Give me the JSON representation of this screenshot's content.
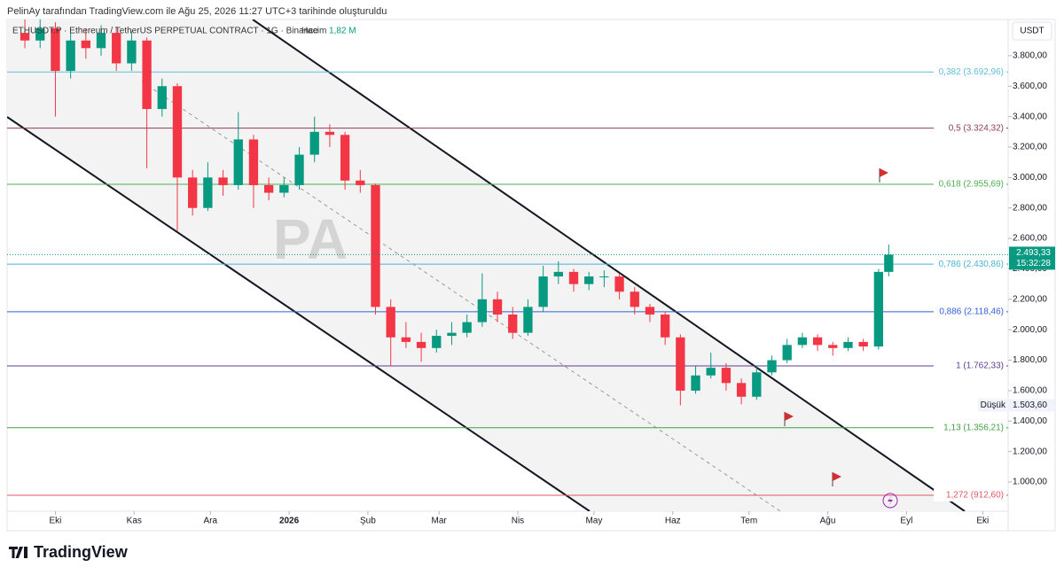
{
  "header": {
    "credit": "PelinAy tarafından TradingView.com ile Ağu 25, 2026 11:27 UTC+3 tarihinde oluşturuldu",
    "symbol": "ETHUSDT.P · Ethereum / TetherUS PERPETUAL CONTRACT · 1G · Binance",
    "volume_label": "Hacim",
    "volume": "1,82 M"
  },
  "currency": "USDT",
  "watermark": "PA",
  "footer": "TradingView",
  "chart_data": {
    "type": "candlestick",
    "xlim": [
      -19,
      375
    ],
    "ylim": [
      808,
      4038
    ],
    "xticks": [
      {
        "value": 0,
        "label": "Eki"
      },
      {
        "value": 31,
        "label": "Kas"
      },
      {
        "value": 61,
        "label": "Ara"
      },
      {
        "value": 92,
        "label": "2026"
      },
      {
        "value": 123,
        "label": "Şub"
      },
      {
        "value": 151,
        "label": "Mar"
      },
      {
        "value": 182,
        "label": "Nis"
      },
      {
        "value": 212,
        "label": "May"
      },
      {
        "value": 243,
        "label": "Haz"
      },
      {
        "value": 273,
        "label": "Tem"
      },
      {
        "value": 304,
        "label": "Ağu"
      },
      {
        "value": 335,
        "label": "Eyl"
      },
      {
        "value": 365,
        "label": "Eki"
      }
    ],
    "yticks": [
      {
        "value": 1000,
        "label": "1.000,00"
      },
      {
        "value": 1200,
        "label": "1.200,00"
      },
      {
        "value": 1400,
        "label": "1.400,00"
      },
      {
        "value": 1600,
        "label": "1.600,00"
      },
      {
        "value": 1800,
        "label": "1.800,00"
      },
      {
        "value": 2000,
        "label": "2.000,00"
      },
      {
        "value": 2200,
        "label": "2.200,00"
      },
      {
        "value": 2400,
        "label": "2.400,00"
      },
      {
        "value": 2600,
        "label": "2.600,00"
      },
      {
        "value": 2800,
        "label": "2.800,00"
      },
      {
        "value": 3000,
        "label": "3.000,00"
      },
      {
        "value": 3200,
        "label": "3.200,00"
      },
      {
        "value": 3400,
        "label": "3.400,00"
      },
      {
        "value": 3600,
        "label": "3.600,00"
      },
      {
        "value": 3800,
        "label": "3.800,00"
      }
    ],
    "up_color": "#089981",
    "down_color": "#f23645",
    "ohlc": [
      [
        -12,
        3950,
        4060,
        3850,
        3900
      ],
      [
        -6,
        3900,
        4050,
        3850,
        3980
      ],
      [
        0,
        3980,
        4020,
        3400,
        3700
      ],
      [
        6,
        3700,
        3950,
        3650,
        3900
      ],
      [
        12,
        3900,
        3980,
        3780,
        3850
      ],
      [
        18,
        3850,
        4000,
        3800,
        3950
      ],
      [
        24,
        3950,
        3990,
        3700,
        3750
      ],
      [
        30,
        3750,
        3960,
        3700,
        3900
      ],
      [
        36,
        3900,
        3920,
        3060,
        3450
      ],
      [
        42,
        3450,
        3650,
        3400,
        3600
      ],
      [
        48,
        3600,
        3620,
        2650,
        3000
      ],
      [
        54,
        3000,
        3050,
        2750,
        2800
      ],
      [
        60,
        2800,
        3100,
        2780,
        3000
      ],
      [
        66,
        3000,
        3050,
        2880,
        2950
      ],
      [
        72,
        2950,
        3430,
        2920,
        3250
      ],
      [
        78,
        3250,
        3280,
        2800,
        2950
      ],
      [
        84,
        2950,
        3000,
        2850,
        2900
      ],
      [
        90,
        2900,
        3000,
        2870,
        2950
      ],
      [
        96,
        2950,
        3200,
        2920,
        3150
      ],
      [
        102,
        3150,
        3400,
        3100,
        3300
      ],
      [
        108,
        3300,
        3350,
        3200,
        3280
      ],
      [
        114,
        3280,
        3300,
        2920,
        2980
      ],
      [
        120,
        2980,
        3050,
        2900,
        2950
      ],
      [
        126,
        2950,
        2960,
        2100,
        2150
      ],
      [
        132,
        2150,
        2200,
        1760,
        1950
      ],
      [
        138,
        1950,
        2050,
        1880,
        1920
      ],
      [
        144,
        1920,
        1980,
        1790,
        1880
      ],
      [
        150,
        1880,
        2000,
        1850,
        1960
      ],
      [
        156,
        1960,
        2050,
        1900,
        1980
      ],
      [
        162,
        1980,
        2100,
        1950,
        2050
      ],
      [
        168,
        2050,
        2370,
        2020,
        2200
      ],
      [
        174,
        2200,
        2250,
        2050,
        2100
      ],
      [
        180,
        2100,
        2150,
        1940,
        1980
      ],
      [
        186,
        1980,
        2200,
        1960,
        2150
      ],
      [
        192,
        2150,
        2420,
        2120,
        2350
      ],
      [
        198,
        2350,
        2450,
        2300,
        2380
      ],
      [
        204,
        2380,
        2400,
        2250,
        2300
      ],
      [
        210,
        2300,
        2380,
        2260,
        2350
      ],
      [
        216,
        2350,
        2390,
        2280,
        2350
      ],
      [
        222,
        2350,
        2370,
        2200,
        2250
      ],
      [
        228,
        2250,
        2280,
        2100,
        2150
      ],
      [
        234,
        2150,
        2170,
        2050,
        2100
      ],
      [
        240,
        2100,
        2120,
        1900,
        1950
      ],
      [
        246,
        1950,
        1970,
        1503.6,
        1600
      ],
      [
        252,
        1600,
        1760,
        1580,
        1700
      ],
      [
        258,
        1700,
        1850,
        1680,
        1750
      ],
      [
        264,
        1750,
        1780,
        1600,
        1650
      ],
      [
        270,
        1650,
        1680,
        1510,
        1560
      ],
      [
        276,
        1560,
        1760,
        1540,
        1720
      ],
      [
        282,
        1720,
        1830,
        1700,
        1800
      ],
      [
        288,
        1800,
        1940,
        1780,
        1900
      ],
      [
        294,
        1900,
        1980,
        1880,
        1950
      ],
      [
        300,
        1950,
        1970,
        1860,
        1900
      ],
      [
        306,
        1900,
        1920,
        1830,
        1880
      ],
      [
        312,
        1880,
        1950,
        1860,
        1920
      ],
      [
        318,
        1920,
        1940,
        1860,
        1890
      ],
      [
        324,
        1890,
        2400,
        1870,
        2380
      ],
      [
        328,
        2380,
        2560,
        2350,
        2493.33
      ]
    ],
    "levels": [
      {
        "label": "0,382 (3.692,96)",
        "value": 3692.96,
        "color": "#5fc0d8"
      },
      {
        "label": "0,5 (3.324,32)",
        "value": 3324.32,
        "color": "#8e3b55"
      },
      {
        "label": "0,618 (2.955,69)",
        "value": 2955.69,
        "color": "#4caf50"
      },
      {
        "label": "0,786 (2.430,86)",
        "value": 2430.86,
        "color": "#4cb3d4"
      },
      {
        "label": "0,886 (2.118,46)",
        "value": 2118.46,
        "color": "#2f5fdc"
      },
      {
        "label": "1 (1.762,33)",
        "value": 1762.33,
        "color": "#5b3f91"
      },
      {
        "label": "1,13 (1.356,21)",
        "value": 1356.21,
        "color": "#43a047"
      },
      {
        "label": "1,272 (912,60)",
        "value": 912.6,
        "color": "#e05763"
      }
    ],
    "last_price": {
      "value": 2493.33,
      "label": "2.493,33"
    },
    "countdown": "15:32:28",
    "low": {
      "text": "Düşük",
      "value": 1503.6,
      "label": "1.503,60"
    }
  }
}
